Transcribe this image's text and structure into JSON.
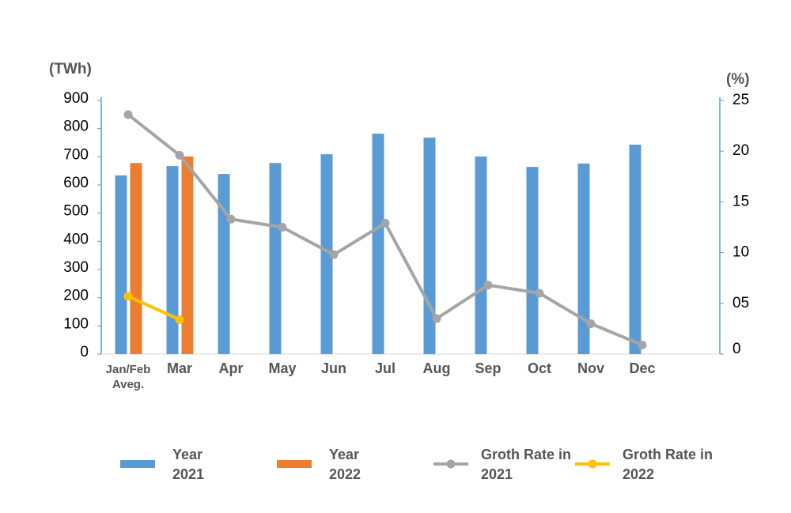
{
  "chart_data": {
    "type": "bar",
    "y_label": "(TWh)",
    "y2_label": "(%)",
    "categories": [
      "Jan/Feb Aveg.",
      "Mar",
      "Apr",
      "May",
      "Jun",
      "Jul",
      "Aug",
      "Sep",
      "Oct",
      "Nov",
      "Dec"
    ],
    "series": [
      {
        "name": "Year 2021",
        "type": "bar",
        "color": "#5b9bd5",
        "values": [
          634,
          667,
          639,
          678,
          709,
          782,
          768,
          701,
          664,
          676,
          743
        ]
      },
      {
        "name": "Year 2022",
        "type": "bar",
        "color": "#ed7d31",
        "values": [
          678,
          701,
          null,
          null,
          null,
          null,
          null,
          null,
          null,
          null,
          null
        ]
      },
      {
        "name": "Groth Rate in 2021",
        "type": "line",
        "axis": "y2",
        "color": "#a5a5a5",
        "values": [
          23.6,
          19.6,
          13.3,
          12.5,
          9.8,
          12.9,
          3.5,
          6.8,
          6.0,
          3.0,
          0.9
        ]
      },
      {
        "name": "Groth Rate in 2022",
        "type": "line",
        "axis": "y2",
        "color": "#ffc000",
        "values": [
          5.7,
          3.4,
          null,
          null,
          null,
          null,
          null,
          null,
          null,
          null,
          null
        ]
      }
    ],
    "ylim": [
      0,
      900
    ],
    "yticks": [
      0,
      100,
      200,
      300,
      400,
      500,
      600,
      700,
      800,
      900
    ],
    "y2lim": [
      0,
      25
    ],
    "y2ticks": [
      0,
      {
        "value": 5,
        "label": "05"
      },
      10,
      15,
      20,
      25
    ],
    "axis_color": "#5b9bd5",
    "legend": "bottom"
  }
}
